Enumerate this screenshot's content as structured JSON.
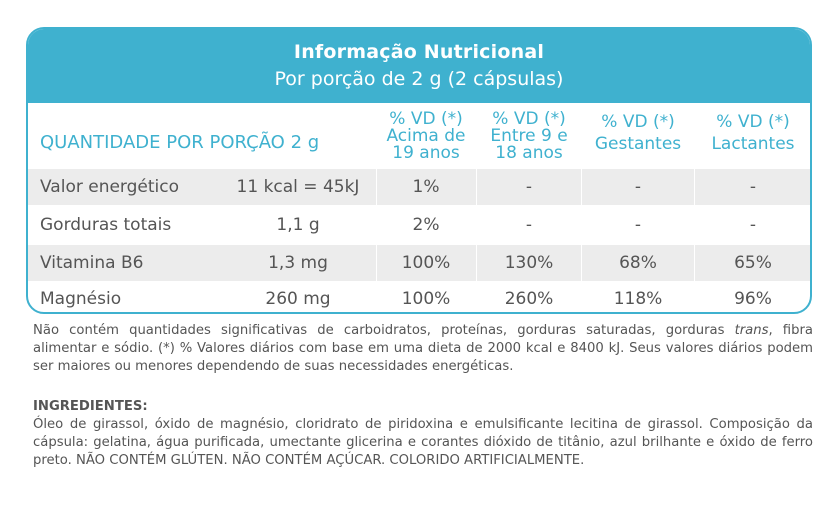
{
  "header": {
    "title": "Informação Nutricional",
    "subtitle": "Por porção de 2 g (2 cápsulas)"
  },
  "columns": {
    "quantity_label": "QUANTIDADE POR PORÇÃO 2 g",
    "vd_adult": [
      "% VD (*)",
      "Acima de",
      "19 anos"
    ],
    "vd_teen": [
      "% VD (*)",
      "Entre 9 e",
      "18 anos"
    ],
    "vd_pregnant": [
      "% VD (*)",
      "Gestantes"
    ],
    "vd_lactating": [
      "% VD (*)",
      "Lactantes"
    ]
  },
  "rows": [
    {
      "name": "Valor energético",
      "amount": "11 kcal = 45kJ",
      "adult": "1%",
      "teen": "-",
      "pregnant": "-",
      "lactating": "-"
    },
    {
      "name": "Gorduras totais",
      "amount": "1,1 g",
      "adult": "2%",
      "teen": "-",
      "pregnant": "-",
      "lactating": "-"
    },
    {
      "name": "Vitamina B6",
      "amount": "1,3 mg",
      "adult": "100%",
      "teen": "130%",
      "pregnant": "68%",
      "lactating": "65%"
    },
    {
      "name": "Magnésio",
      "amount": "260 mg",
      "adult": "100%",
      "teen": "260%",
      "pregnant": "118%",
      "lactating": "96%"
    }
  ],
  "footnote": {
    "part1": "Não contém quantidades significativas de carboidratos, proteínas, gorduras saturadas, gorduras ",
    "italic": "trans",
    "part2": ", fibra alimentar e sódio. (*) % Valores diários com base em uma dieta de 2000 kcal e 8400 kJ. Seus valores diários podem ser maiores ou menores dependendo de suas necessidades energéticas."
  },
  "ingredients": {
    "title": "INGREDIENTES:",
    "text": "Óleo de girassol, óxido de magnésio, cloridrato de piridoxina e emulsificante lecitina de girassol. Composição da cápsula: gelatina, água purificada, umectante glicerina e corantes dióxido de titânio, azul brilhante e óxido de ferro preto. NÃO CONTÉM GLÚTEN. NÃO CONTÉM AÇÚCAR. COLORIDO ARTIFICIALMENTE."
  },
  "colors": {
    "accent": "#3fb1cf",
    "row_shade": "#ececec",
    "text": "#555555"
  }
}
